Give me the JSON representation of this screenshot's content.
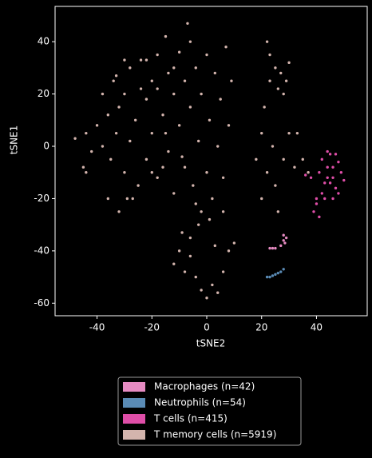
{
  "chart_data": {
    "type": "scatter",
    "x_label": "tSNE2",
    "y_label": "tSNE1",
    "xlim": [
      -55.3,
      58.5
    ],
    "ylim": [
      -64.8,
      53.5
    ],
    "xticks": [
      -40,
      -20,
      0,
      20,
      40
    ],
    "yticks": [
      -60,
      -40,
      -20,
      0,
      20,
      40
    ],
    "legend": "bottom",
    "series": [
      {
        "name": "Macrophages (n=42)",
        "color": "#e68bc2",
        "x": [
          28,
          28.5,
          27,
          25,
          24,
          29,
          28,
          23
        ],
        "values": [
          -36,
          -37,
          -38,
          -39,
          -39,
          -35,
          -34,
          -39
        ]
      },
      {
        "name": "Neutrophils (n=54)",
        "color": "#5a8bb5",
        "x": [
          22,
          23,
          24,
          25,
          26,
          27,
          28
        ],
        "values": [
          -50,
          -50,
          -49.5,
          -49,
          -48.5,
          -48,
          -47
        ]
      },
      {
        "name": "T cells (n=415)",
        "color": "#df4ea8",
        "x": [
          42,
          44,
          46,
          48,
          45,
          43,
          47,
          49,
          50,
          44,
          41,
          46,
          48,
          42,
          40,
          39,
          41,
          40,
          43,
          46,
          38,
          36,
          45,
          47,
          44
        ],
        "values": [
          -5,
          -8,
          -12,
          -6,
          -3,
          -14,
          -16,
          -10,
          -13,
          -2,
          -10,
          -8,
          -18,
          -18,
          -22,
          -25,
          -27,
          -20,
          -20,
          -20,
          -12,
          -11,
          -14,
          -3,
          -12
        ]
      },
      {
        "name": "T memory cells (n=5919)",
        "color": "#d3b4ad",
        "x": [
          -48,
          -45,
          -44,
          -42,
          -40,
          -38,
          -36,
          -35,
          -34,
          -33,
          -32,
          -30,
          -30,
          -28,
          -28,
          -26,
          -25,
          -24,
          -22,
          -22,
          -20,
          -20,
          -18,
          -18,
          -16,
          -15,
          -14,
          -14,
          -12,
          -12,
          -10,
          -10,
          -8,
          -8,
          -6,
          -6,
          -5,
          -4,
          -3,
          -2,
          0,
          0,
          1,
          2,
          3,
          4,
          5,
          6,
          7,
          8,
          9,
          -36,
          -27,
          -18,
          -24,
          -38,
          -44,
          -15,
          -9,
          -2,
          1,
          -4,
          6,
          -30,
          -22,
          -33,
          -12,
          -16,
          -20,
          18,
          20,
          22,
          24,
          25,
          26,
          28,
          30,
          32,
          21,
          23,
          20,
          22,
          23,
          25,
          27,
          29,
          30,
          28,
          26,
          33,
          35,
          37,
          -12,
          -10,
          -8,
          -6,
          -4,
          -2,
          0,
          2,
          4,
          -6,
          -3,
          3,
          8,
          10,
          6,
          -9,
          -32,
          -29,
          -7
        ],
        "values": [
          3,
          -8,
          5,
          -2,
          8,
          0,
          12,
          -5,
          25,
          5,
          15,
          -10,
          20,
          30,
          2,
          10,
          -15,
          33,
          18,
          -5,
          25,
          5,
          35,
          -12,
          12,
          42,
          28,
          -2,
          20,
          -18,
          36,
          8,
          25,
          -8,
          15,
          40,
          -15,
          30,
          2,
          20,
          -10,
          35,
          10,
          -20,
          28,
          0,
          18,
          -12,
          38,
          8,
          25,
          -20,
          -20,
          22,
          22,
          20,
          -10,
          5,
          -4,
          -25,
          -28,
          -22,
          -25,
          33,
          33,
          27,
          30,
          -8,
          -10,
          -5,
          5,
          -10,
          0,
          -15,
          -25,
          -5,
          5,
          -8,
          15,
          25,
          -20,
          40,
          35,
          30,
          28,
          25,
          32,
          20,
          22,
          5,
          -5,
          -10,
          -45,
          -40,
          -48,
          -42,
          -50,
          -55,
          -58,
          -53,
          -56,
          -35,
          -30,
          -38,
          -40,
          -37,
          -48,
          -33,
          -25,
          -20,
          47
        ]
      }
    ]
  }
}
